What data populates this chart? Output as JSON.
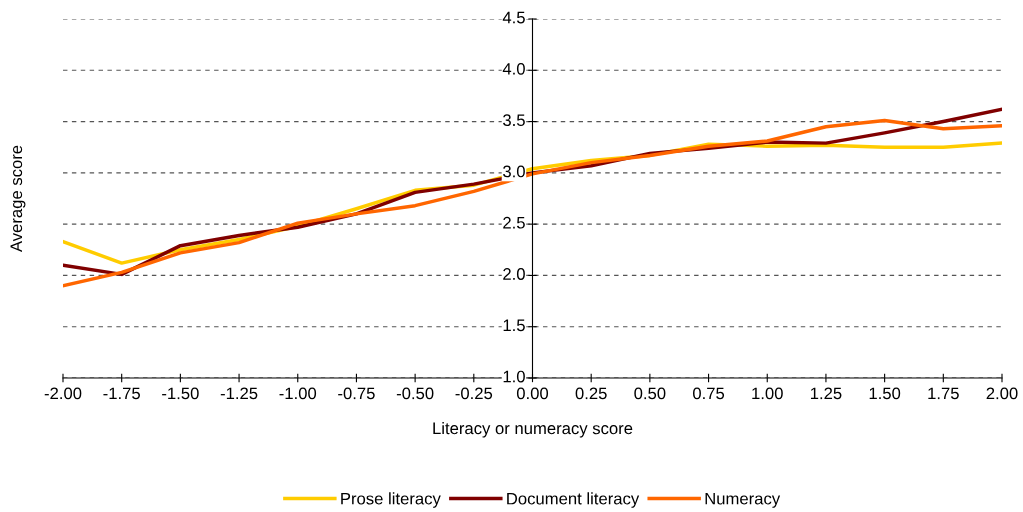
{
  "chart_data": {
    "type": "line",
    "xlabel": "Literacy or numeracy score",
    "ylabel": "Average score",
    "x": [
      -2,
      -1.75,
      -1.5,
      -1.25,
      -1,
      -0.75,
      -0.5,
      -0.25,
      0,
      0.25,
      0.5,
      0.75,
      1,
      1.25,
      1.5,
      1.75,
      2
    ],
    "series": [
      {
        "name": "Prose literacy",
        "color": "#ffcc00",
        "values": [
          2.33,
          2.12,
          2.25,
          2.35,
          2.48,
          2.65,
          2.83,
          2.88,
          3.04,
          3.12,
          3.17,
          3.28,
          3.26,
          3.27,
          3.25,
          3.25,
          3.29
        ]
      },
      {
        "name": "Document literacy",
        "color": "#800000",
        "values": [
          2.1,
          2.01,
          2.29,
          2.39,
          2.47,
          2.6,
          2.81,
          2.89,
          3.0,
          3.07,
          3.19,
          3.24,
          3.3,
          3.29,
          3.39,
          3.5,
          3.62
        ]
      },
      {
        "name": "Numeracy",
        "color": "#ff6600",
        "values": [
          1.9,
          2.03,
          2.22,
          2.32,
          2.51,
          2.6,
          2.68,
          2.82,
          2.99,
          3.1,
          3.17,
          3.26,
          3.31,
          3.45,
          3.51,
          3.43,
          3.46
        ]
      }
    ],
    "xlim": [
      -2,
      2
    ],
    "xticks": [
      {
        "value": -2,
        "label": "-2.00"
      },
      {
        "value": -1.75,
        "label": "-1.75"
      },
      {
        "value": -1.5,
        "label": "-1.50"
      },
      {
        "value": -1.25,
        "label": "-1.25"
      },
      {
        "value": -1,
        "label": "-1.00"
      },
      {
        "value": -0.75,
        "label": "-0.75"
      },
      {
        "value": -0.5,
        "label": "-0.50"
      },
      {
        "value": -0.25,
        "label": "-0.25"
      },
      {
        "value": 0,
        "label": "0.00"
      },
      {
        "value": 0.25,
        "label": "0.25"
      },
      {
        "value": 0.5,
        "label": "0.50"
      },
      {
        "value": 0.75,
        "label": "0.75"
      },
      {
        "value": 1,
        "label": "1.00"
      },
      {
        "value": 1.25,
        "label": "1.25"
      },
      {
        "value": 1.5,
        "label": "1.50"
      },
      {
        "value": 1.75,
        "label": "1.75"
      },
      {
        "value": 2,
        "label": "2.00"
      }
    ],
    "ylim": [
      1,
      4.5
    ],
    "yticks": [
      {
        "value": 1,
        "label": "1.0"
      },
      {
        "value": 1.5,
        "label": "1.5"
      },
      {
        "value": 2,
        "label": "2.0"
      },
      {
        "value": 2.5,
        "label": "2.5"
      },
      {
        "value": 3,
        "label": "3.0"
      },
      {
        "value": 3.5,
        "label": "3.5"
      },
      {
        "value": 4,
        "label": "4.0"
      },
      {
        "value": 4.5,
        "label": "4.5"
      }
    ],
    "grid": "y",
    "legend": "bottom",
    "marker": "none",
    "line_style": "solid"
  }
}
